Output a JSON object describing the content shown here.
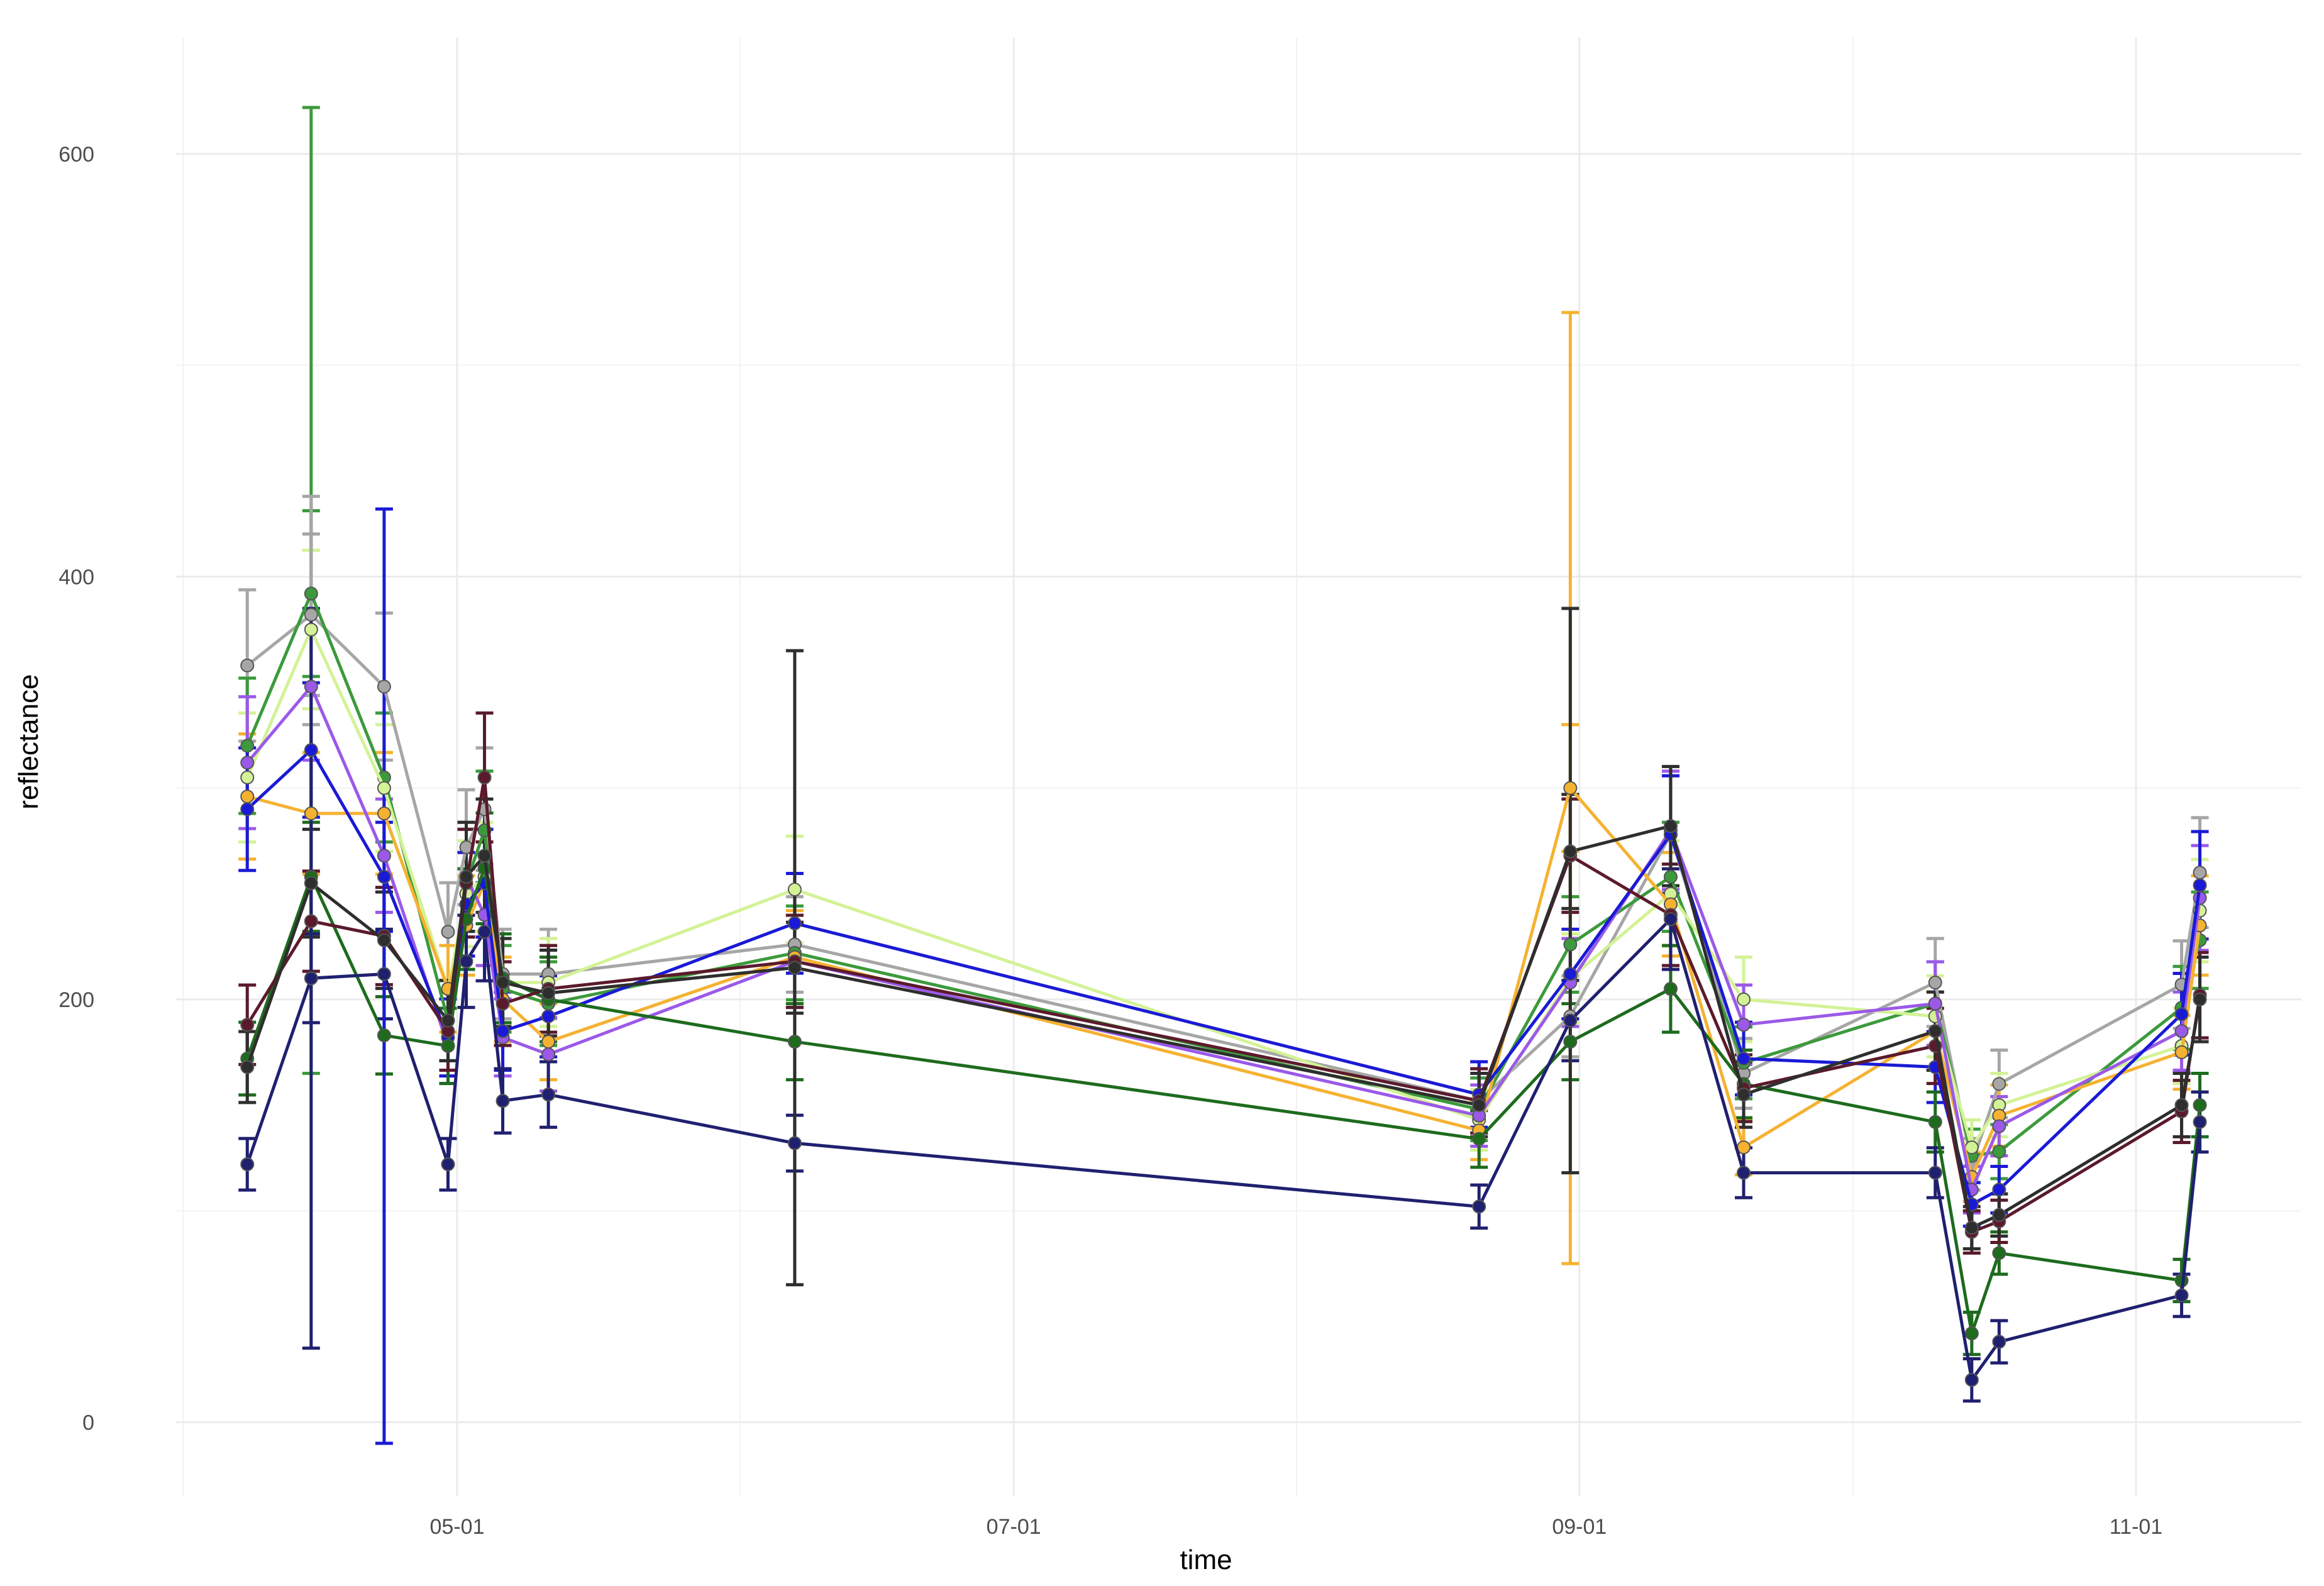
{
  "chart_data": {
    "type": "line",
    "title": "",
    "xlabel": "time",
    "ylabel": "reflectance",
    "x_ticks": [
      "05-01",
      "07-01",
      "09-01",
      "11-01"
    ],
    "y_ticks": [
      0,
      200,
      400,
      600
    ],
    "ylim": [
      -35,
      655
    ],
    "grid": true,
    "legend": "none",
    "x": [
      "04-08",
      "04-15",
      "04-23",
      "04-30",
      "05-02",
      "05-04",
      "05-06",
      "05-11",
      "06-07",
      "08-21",
      "08-31",
      "09-11",
      "09-19",
      "10-10",
      "10-14",
      "10-17",
      "11-06",
      "11-08"
    ],
    "series": [
      {
        "name": "gray",
        "color": "#a6a6a6",
        "values": [
          358,
          382,
          348,
          232,
          272,
          290,
          212,
          212,
          226,
          152,
          192,
          278,
          165,
          208,
          122,
          160,
          207,
          260
        ]
      },
      {
        "name": "medium-green",
        "color": "#3c9a3c",
        "values": [
          320,
          392,
          305,
          190,
          255,
          280,
          205,
          198,
          222,
          148,
          226,
          258,
          170,
          198,
          126,
          128,
          196,
          228
        ]
      },
      {
        "name": "light-green",
        "color": "#d3f296",
        "values": [
          305,
          375,
          300,
          205,
          250,
          258,
          208,
          208,
          252,
          143,
          210,
          250,
          200,
          192,
          130,
          150,
          178,
          242
        ]
      },
      {
        "name": "orange",
        "color": "#f5b231",
        "values": [
          296,
          288,
          288,
          205,
          235,
          255,
          200,
          180,
          220,
          138,
          300,
          245,
          130,
          185,
          116,
          145,
          175,
          235
        ]
      },
      {
        "name": "purple",
        "color": "#9b59e8",
        "values": [
          312,
          348,
          268,
          178,
          258,
          240,
          182,
          174,
          218,
          145,
          208,
          280,
          188,
          198,
          110,
          140,
          185,
          248
        ]
      },
      {
        "name": "blue",
        "color": "#1a1ad6",
        "values": [
          290,
          318,
          258,
          182,
          245,
          255,
          185,
          192,
          236,
          155,
          212,
          278,
          172,
          168,
          103,
          110,
          193,
          254
        ]
      },
      {
        "name": "dark-green",
        "color": "#1e6b1e",
        "values": [
          172,
          258,
          183,
          178,
          238,
          262,
          210,
          200,
          180,
          134,
          180,
          205,
          160,
          142,
          42,
          80,
          67,
          150
        ]
      },
      {
        "name": "maroon",
        "color": "#5b1a2b",
        "values": [
          188,
          237,
          230,
          185,
          255,
          305,
          198,
          205,
          218,
          152,
          268,
          240,
          158,
          178,
          90,
          95,
          147,
          202
        ]
      },
      {
        "name": "navy",
        "color": "#202070",
        "values": [
          122,
          210,
          212,
          122,
          218,
          232,
          152,
          155,
          132,
          102,
          190,
          238,
          118,
          118,
          20,
          38,
          60,
          142
        ]
      },
      {
        "name": "charcoal",
        "color": "#2e2e2e",
        "values": [
          168,
          255,
          228,
          190,
          258,
          268,
          208,
          203,
          215,
          150,
          270,
          282,
          155,
          185,
          92,
          98,
          150,
          200
        ]
      }
    ],
    "error_bars": [
      {
        "series": "medium-green",
        "x": "04-15",
        "low": 165,
        "high": 622
      },
      {
        "series": "gray",
        "x": "04-15",
        "low": 330,
        "high": 438
      },
      {
        "series": "navy",
        "x": "04-15",
        "low": 35,
        "high": 385
      },
      {
        "series": "blue",
        "x": "04-23",
        "low": -10,
        "high": 432
      },
      {
        "series": "orange",
        "x": "08-31",
        "low": 75,
        "high": 525
      },
      {
        "series": "charcoal",
        "x": "06-07",
        "low": 65,
        "high": 365
      },
      {
        "series": "charcoal",
        "x": "08-31",
        "low": 118,
        "high": 385
      }
    ]
  }
}
